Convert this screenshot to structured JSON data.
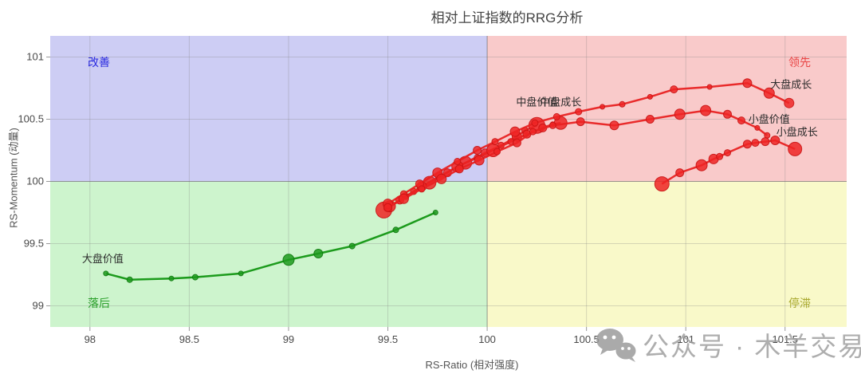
{
  "title": "相对上证指数的RRG分析",
  "watermark": {
    "icon": "wechat-icon",
    "text": "公众号 · 木羊交易"
  },
  "chart_data": {
    "type": "scatter",
    "title": "相对上证指数的RRG分析",
    "xlabel": "RS-Ratio (相对强度)",
    "ylabel": "RS-Momentum (动量)",
    "xlim": [
      97.8,
      101.81
    ],
    "ylim": [
      98.83,
      101.17
    ],
    "xticks": [
      98,
      98.5,
      99,
      99.5,
      100,
      100.5,
      101,
      101.5
    ],
    "yticks": [
      99,
      99.5,
      100,
      100.5,
      101
    ],
    "center": [
      100,
      100
    ],
    "grid": true,
    "quadrants": [
      {
        "name": "improving",
        "label": "改善",
        "position": "top-left",
        "bg": "#cdcdf4",
        "label_color": "#2a2ae0"
      },
      {
        "name": "leading",
        "label": "领先",
        "position": "top-right",
        "bg": "#f9caca",
        "label_color": "#e94545"
      },
      {
        "name": "lagging",
        "label": "落后",
        "position": "bottom-left",
        "bg": "#cdf4cd",
        "label_color": "#2da12d"
      },
      {
        "name": "weakening",
        "label": "停滞",
        "position": "bottom-right",
        "bg": "#f9f9c9",
        "label_color": "#a9a92f"
      }
    ],
    "series": [
      {
        "name": "large-cap-value",
        "label": "大盘价值",
        "color": "#129612",
        "marker_fill": "#1d9a1d",
        "marker_stroke": "#0e7a0e",
        "label_pos": [
          97.96,
          99.35
        ],
        "label_anchor": "start",
        "points": [
          [
            98.08,
            99.26,
            3
          ],
          [
            98.2,
            99.21,
            3.5
          ],
          [
            98.41,
            99.22,
            3
          ],
          [
            98.53,
            99.23,
            3.5
          ],
          [
            98.76,
            99.26,
            3
          ],
          [
            99.0,
            99.37,
            7
          ],
          [
            99.15,
            99.42,
            5.5
          ],
          [
            99.32,
            99.48,
            3.5
          ],
          [
            99.54,
            99.61,
            3.5
          ],
          [
            99.74,
            99.75,
            3
          ]
        ]
      },
      {
        "name": "mid-cap-value",
        "label": "中盘价值",
        "color": "#e82222",
        "marker_fill": "#ef2424",
        "marker_stroke": "#c81414",
        "label_pos": [
          100.25,
          100.61
        ],
        "label_anchor": "middle",
        "points": [
          [
            99.48,
            99.77,
            10
          ],
          [
            99.56,
            99.85,
            5
          ],
          [
            99.63,
            99.92,
            4
          ],
          [
            99.71,
            99.99,
            8
          ],
          [
            99.8,
            100.07,
            5
          ],
          [
            99.89,
            100.15,
            8
          ],
          [
            99.99,
            100.23,
            5
          ],
          [
            100.07,
            100.29,
            4
          ],
          [
            100.15,
            100.36,
            6
          ],
          [
            100.19,
            100.41,
            4
          ],
          [
            100.25,
            100.45,
            10
          ]
        ]
      },
      {
        "name": "mid-cap-growth",
        "label": "中盘成长",
        "color": "#e82222",
        "marker_fill": "#ef2424",
        "marker_stroke": "#c81414",
        "label_pos": [
          100.37,
          100.61
        ],
        "label_anchor": "middle",
        "points": [
          [
            99.51,
            99.8,
            7
          ],
          [
            99.59,
            99.88,
            4
          ],
          [
            99.67,
            99.96,
            6
          ],
          [
            99.76,
            100.04,
            5
          ],
          [
            99.85,
            100.12,
            7
          ],
          [
            99.95,
            100.19,
            4
          ],
          [
            100.03,
            100.25,
            8
          ],
          [
            100.12,
            100.32,
            4
          ],
          [
            100.2,
            100.38,
            5
          ],
          [
            100.28,
            100.43,
            5
          ],
          [
            100.33,
            100.46,
            3
          ],
          [
            100.37,
            100.47,
            8
          ]
        ]
      },
      {
        "name": "large-cap-growth",
        "label": "大盘成长",
        "color": "#e82222",
        "marker_fill": "#ef2424",
        "marker_stroke": "#c81414",
        "label_pos": [
          101.53,
          100.75
        ],
        "label_anchor": "middle",
        "points": [
          [
            99.5,
            99.82,
            6
          ],
          [
            99.58,
            99.9,
            4
          ],
          [
            99.66,
            99.98,
            5
          ],
          [
            99.75,
            100.07,
            6
          ],
          [
            99.85,
            100.16,
            4
          ],
          [
            99.95,
            100.25,
            5
          ],
          [
            100.04,
            100.32,
            4
          ],
          [
            100.14,
            100.4,
            6
          ],
          [
            100.24,
            100.47,
            4
          ],
          [
            100.35,
            100.52,
            4
          ],
          [
            100.46,
            100.56,
            4
          ],
          [
            100.58,
            100.6,
            3
          ],
          [
            100.68,
            100.62,
            3.5
          ],
          [
            100.82,
            100.68,
            3
          ],
          [
            100.94,
            100.74,
            4.5
          ],
          [
            101.12,
            100.76,
            3
          ],
          [
            101.31,
            100.79,
            5.5
          ],
          [
            101.42,
            100.71,
            6.5
          ],
          [
            101.52,
            100.63,
            6
          ]
        ]
      },
      {
        "name": "small-cap-value",
        "label": "小盘价值",
        "color": "#e82222",
        "marker_fill": "#ef2424",
        "marker_stroke": "#c81414",
        "label_pos": [
          101.42,
          100.47
        ],
        "label_anchor": "middle",
        "points": [
          [
            99.5,
            99.79,
            5
          ],
          [
            99.58,
            99.86,
            6
          ],
          [
            99.67,
            99.94,
            4
          ],
          [
            99.77,
            100.02,
            6
          ],
          [
            99.86,
            100.1,
            5
          ],
          [
            99.96,
            100.17,
            6
          ],
          [
            100.05,
            100.24,
            4
          ],
          [
            100.15,
            100.31,
            5
          ],
          [
            100.23,
            100.4,
            4
          ],
          [
            100.33,
            100.45,
            4
          ],
          [
            100.47,
            100.48,
            5
          ],
          [
            100.64,
            100.45,
            5.5
          ],
          [
            100.82,
            100.5,
            5
          ],
          [
            100.97,
            100.54,
            6.5
          ],
          [
            101.1,
            100.57,
            6.5
          ],
          [
            101.21,
            100.54,
            5
          ],
          [
            101.28,
            100.49,
            4.5
          ],
          [
            101.36,
            100.43,
            3
          ],
          [
            101.41,
            100.37,
            3.5
          ]
        ]
      },
      {
        "name": "small-cap-growth",
        "label": "小盘成长",
        "color": "#e82222",
        "marker_fill": "#ef2424",
        "marker_stroke": "#c81414",
        "label_pos": [
          101.56,
          100.37
        ],
        "label_anchor": "middle",
        "points": [
          [
            100.88,
            99.98,
            9
          ],
          [
            100.97,
            100.07,
            5
          ],
          [
            101.08,
            100.13,
            7
          ],
          [
            101.14,
            100.18,
            6
          ],
          [
            101.17,
            100.2,
            4
          ],
          [
            101.21,
            100.23,
            4
          ],
          [
            101.31,
            100.3,
            5
          ],
          [
            101.35,
            100.31,
            4.5
          ],
          [
            101.4,
            100.32,
            5
          ],
          [
            101.45,
            100.33,
            5.5
          ],
          [
            101.55,
            100.26,
            8.5
          ]
        ]
      }
    ]
  }
}
